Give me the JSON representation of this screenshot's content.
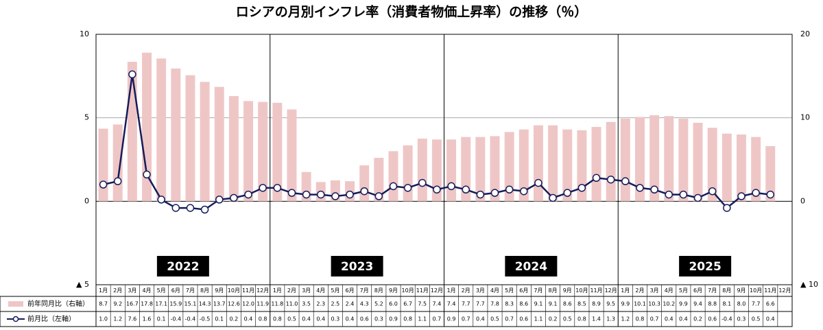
{
  "chart_data": {
    "type": "combo",
    "title": "ロシアの月別インフレ率（消費者物価上昇率）の推移（％）",
    "year_labels": [
      "2022",
      "2023",
      "2024",
      "2025"
    ],
    "categories": [
      "1月",
      "2月",
      "3月",
      "4月",
      "5月",
      "6月",
      "7月",
      "8月",
      "9月",
      "10月",
      "11月",
      "12月",
      "1月",
      "2月",
      "3月",
      "4月",
      "5月",
      "6月",
      "7月",
      "8月",
      "9月",
      "10月",
      "11月",
      "12月",
      "1月",
      "2月",
      "3月",
      "4月",
      "5月",
      "6月",
      "7月",
      "8月",
      "9月",
      "10月",
      "11月",
      "12月",
      "1月",
      "2月",
      "3月",
      "4月",
      "5月",
      "6月",
      "7月",
      "8月",
      "9月",
      "10月",
      "11月",
      "12月"
    ],
    "ylim": [
      -5,
      10
    ],
    "yticks": [
      {
        "value": -5,
        "label": "▲ 5"
      },
      0,
      5,
      10
    ],
    "y2lim": [
      -10,
      20
    ],
    "y2ticks": [
      {
        "value": -10,
        "label": "▲ 10"
      },
      0,
      10,
      20
    ],
    "grid": true,
    "series": [
      {
        "name": "前年同月比（右軸）",
        "type": "bar",
        "axis": "y2",
        "color": "#efc6c6",
        "values": [
          8.7,
          9.2,
          16.7,
          17.8,
          17.1,
          15.9,
          15.1,
          14.3,
          13.7,
          12.6,
          12.0,
          11.9,
          11.8,
          11.0,
          3.5,
          2.3,
          2.5,
          2.4,
          4.3,
          5.2,
          6.0,
          6.7,
          7.5,
          7.4,
          7.4,
          7.7,
          7.7,
          7.8,
          8.3,
          8.6,
          9.1,
          9.1,
          8.6,
          8.5,
          8.9,
          9.5,
          9.9,
          10.1,
          10.3,
          10.2,
          9.9,
          9.4,
          8.8,
          8.1,
          8.0,
          7.7,
          6.6,
          null
        ],
        "value_labels": [
          "8.7",
          "9.2",
          "16.7",
          "17.8",
          "17.1",
          "15.9",
          "15.1",
          "14.3",
          "13.7",
          "12.6",
          "12.0",
          "11.9",
          "11.8",
          "11.0",
          "3.5",
          "2.3",
          "2.5",
          "2.4",
          "4.3",
          "5.2",
          "6.0",
          "6.7",
          "7.5",
          "7.4",
          "7.4",
          "7.7",
          "7.7",
          "7.8",
          "8.3",
          "8.6",
          "9.1",
          "9.1",
          "8.6",
          "8.5",
          "8.9",
          "9.5",
          "9.9",
          "10.1",
          "10.3",
          "10.2",
          "9.9",
          "9.4",
          "8.8",
          "8.1",
          "8.0",
          "7.7",
          "6.6",
          null
        ]
      },
      {
        "name": "前月比（左軸）",
        "type": "line",
        "color": "#141c5a",
        "values": [
          1.0,
          1.2,
          7.6,
          1.6,
          0.1,
          -0.4,
          -0.4,
          -0.5,
          0.1,
          0.2,
          0.4,
          0.8,
          0.8,
          0.5,
          0.4,
          0.4,
          0.3,
          0.4,
          0.6,
          0.3,
          0.9,
          0.8,
          1.1,
          0.7,
          0.9,
          0.7,
          0.4,
          0.5,
          0.7,
          0.6,
          1.1,
          0.2,
          0.5,
          0.8,
          1.4,
          1.3,
          1.2,
          0.8,
          0.7,
          0.4,
          0.4,
          0.2,
          0.6,
          -0.4,
          0.3,
          0.5,
          0.4,
          null
        ],
        "value_labels": [
          "1.0",
          "1.2",
          "7.6",
          "1.6",
          "0.1",
          "-0.4",
          "-0.4",
          "-0.5",
          "0.1",
          "0.2",
          "0.4",
          "0.8",
          "0.8",
          "0.5",
          "0.4",
          "0.4",
          "0.3",
          "0.4",
          "0.6",
          "0.3",
          "0.9",
          "0.8",
          "1.1",
          "0.7",
          "0.9",
          "0.7",
          "0.4",
          "0.5",
          "0.7",
          "0.6",
          "1.1",
          "0.2",
          "0.5",
          "0.8",
          "1.4",
          "1.3",
          "1.2",
          "0.8",
          "0.7",
          "0.4",
          "0.4",
          "0.2",
          "0.6",
          "-0.4",
          "0.3",
          "0.5",
          "0.4",
          null
        ]
      }
    ]
  }
}
